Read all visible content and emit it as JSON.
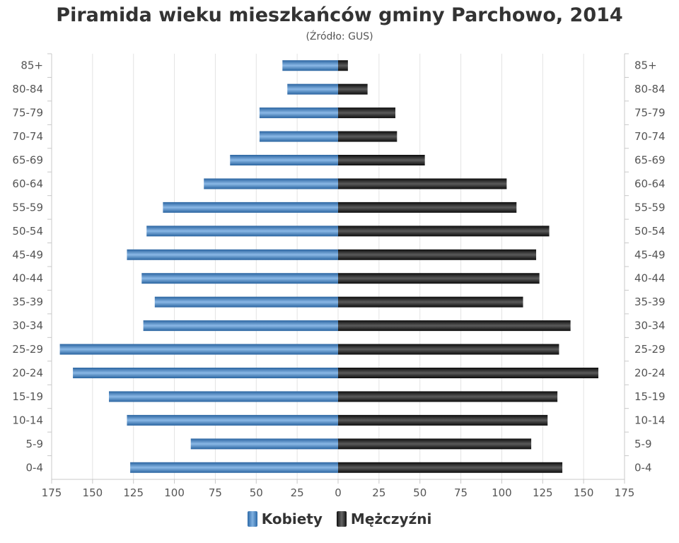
{
  "title": "Piramida wieku mieszkańców gminy Parchowo, 2014",
  "subtitle": "(Źródło: GUS)",
  "colors": {
    "women": "#4a86c5",
    "men": "#1a1a1a"
  },
  "legend": {
    "women": "Kobiety",
    "men": "Mężczyźni"
  },
  "chart_data": {
    "type": "bar",
    "orientation": "horizontal-population-pyramid",
    "categories": [
      "85+",
      "80-84",
      "75-79",
      "70-74",
      "65-69",
      "60-64",
      "55-59",
      "50-54",
      "45-49",
      "40-44",
      "35-39",
      "30-34",
      "25-29",
      "20-24",
      "15-19",
      "10-14",
      "5-9",
      "0-4"
    ],
    "series": [
      {
        "name": "Kobiety",
        "side": "left",
        "values": [
          34,
          31,
          48,
          48,
          66,
          82,
          107,
          117,
          129,
          120,
          112,
          119,
          170,
          162,
          140,
          129,
          90,
          127
        ]
      },
      {
        "name": "Mężczyźni",
        "side": "right",
        "values": [
          6,
          18,
          35,
          36,
          53,
          103,
          109,
          129,
          121,
          123,
          113,
          142,
          135,
          159,
          134,
          128,
          118,
          137
        ]
      }
    ],
    "xlim": [
      -175,
      175
    ],
    "x_ticks": [
      -175,
      -150,
      -125,
      -100,
      -75,
      -50,
      -25,
      0,
      25,
      50,
      75,
      100,
      125,
      150,
      175
    ],
    "x_tick_labels": [
      "175",
      "150",
      "125",
      "100",
      "75",
      "50",
      "25",
      "0",
      "25",
      "50",
      "75",
      "100",
      "125",
      "150",
      "175"
    ],
    "grid": true,
    "legend_position": "bottom"
  }
}
